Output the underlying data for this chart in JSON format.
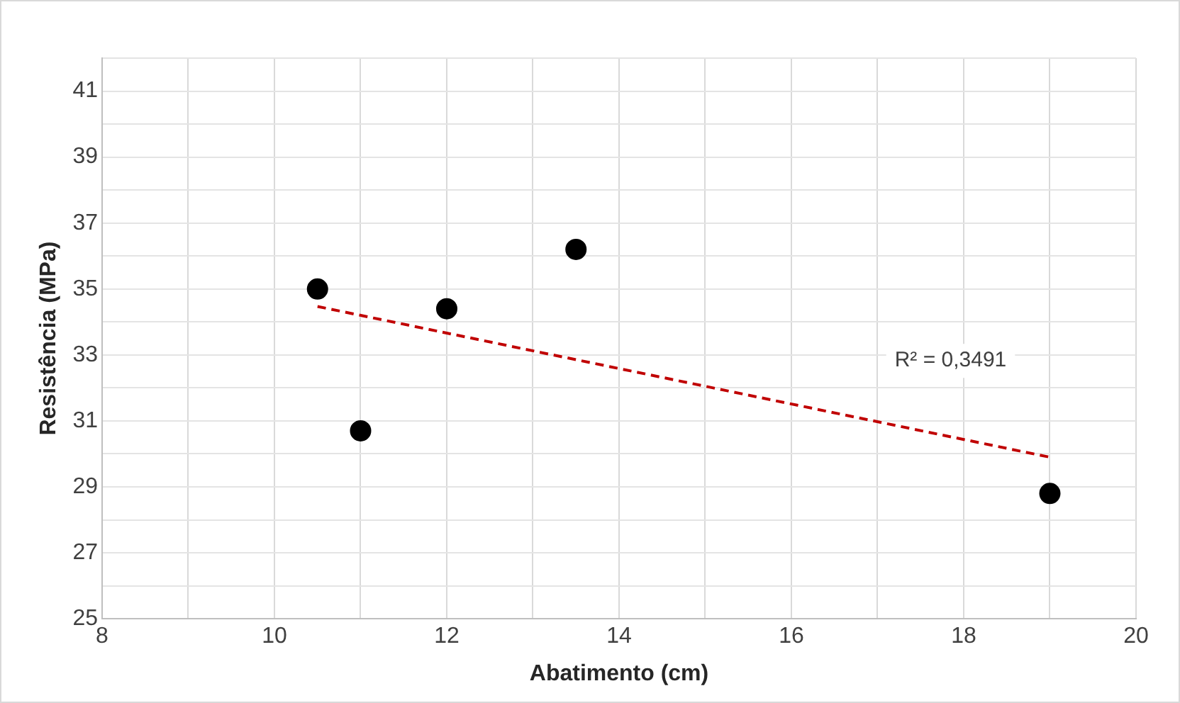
{
  "chart_data": {
    "type": "scatter",
    "xlabel": "Abatimento (cm)",
    "ylabel": "Resistência (MPa)",
    "xlim": [
      8,
      20
    ],
    "ylim": [
      25,
      42
    ],
    "xticks": [
      8,
      {
        "value": 9,
        "label": null
      },
      10,
      {
        "value": 11,
        "label": null
      },
      12,
      {
        "value": 13,
        "label": null
      },
      14,
      {
        "value": 15,
        "label": null
      },
      16,
      {
        "value": 17,
        "label": null
      },
      18,
      {
        "value": 19,
        "label": null
      },
      20
    ],
    "yticks": [
      25,
      {
        "value": 26,
        "label": null
      },
      27,
      {
        "value": 28,
        "label": null
      },
      29,
      {
        "value": 30,
        "label": null
      },
      31,
      {
        "value": 32,
        "label": null
      },
      33,
      {
        "value": 34,
        "label": null
      },
      35,
      {
        "value": 36,
        "label": null
      },
      37,
      {
        "value": 38,
        "label": null
      },
      39,
      {
        "value": 40,
        "label": null
      },
      41,
      {
        "value": 42,
        "label": null
      }
    ],
    "grid": true,
    "legend": false,
    "series": [
      {
        "x": [
          10.5,
          11,
          12,
          13.5,
          19
        ],
        "values": [
          35,
          30.7,
          34.4,
          36.2,
          28.8
        ],
        "color": "#000000",
        "marker": "circle"
      },
      {
        "type": "line",
        "x": [
          10.5,
          19
        ],
        "values": [
          34.47,
          29.9
        ],
        "color": "#c00000",
        "line_style": "dashed",
        "marker": "none"
      }
    ],
    "annotations": [
      "R² = 0,3491"
    ]
  }
}
